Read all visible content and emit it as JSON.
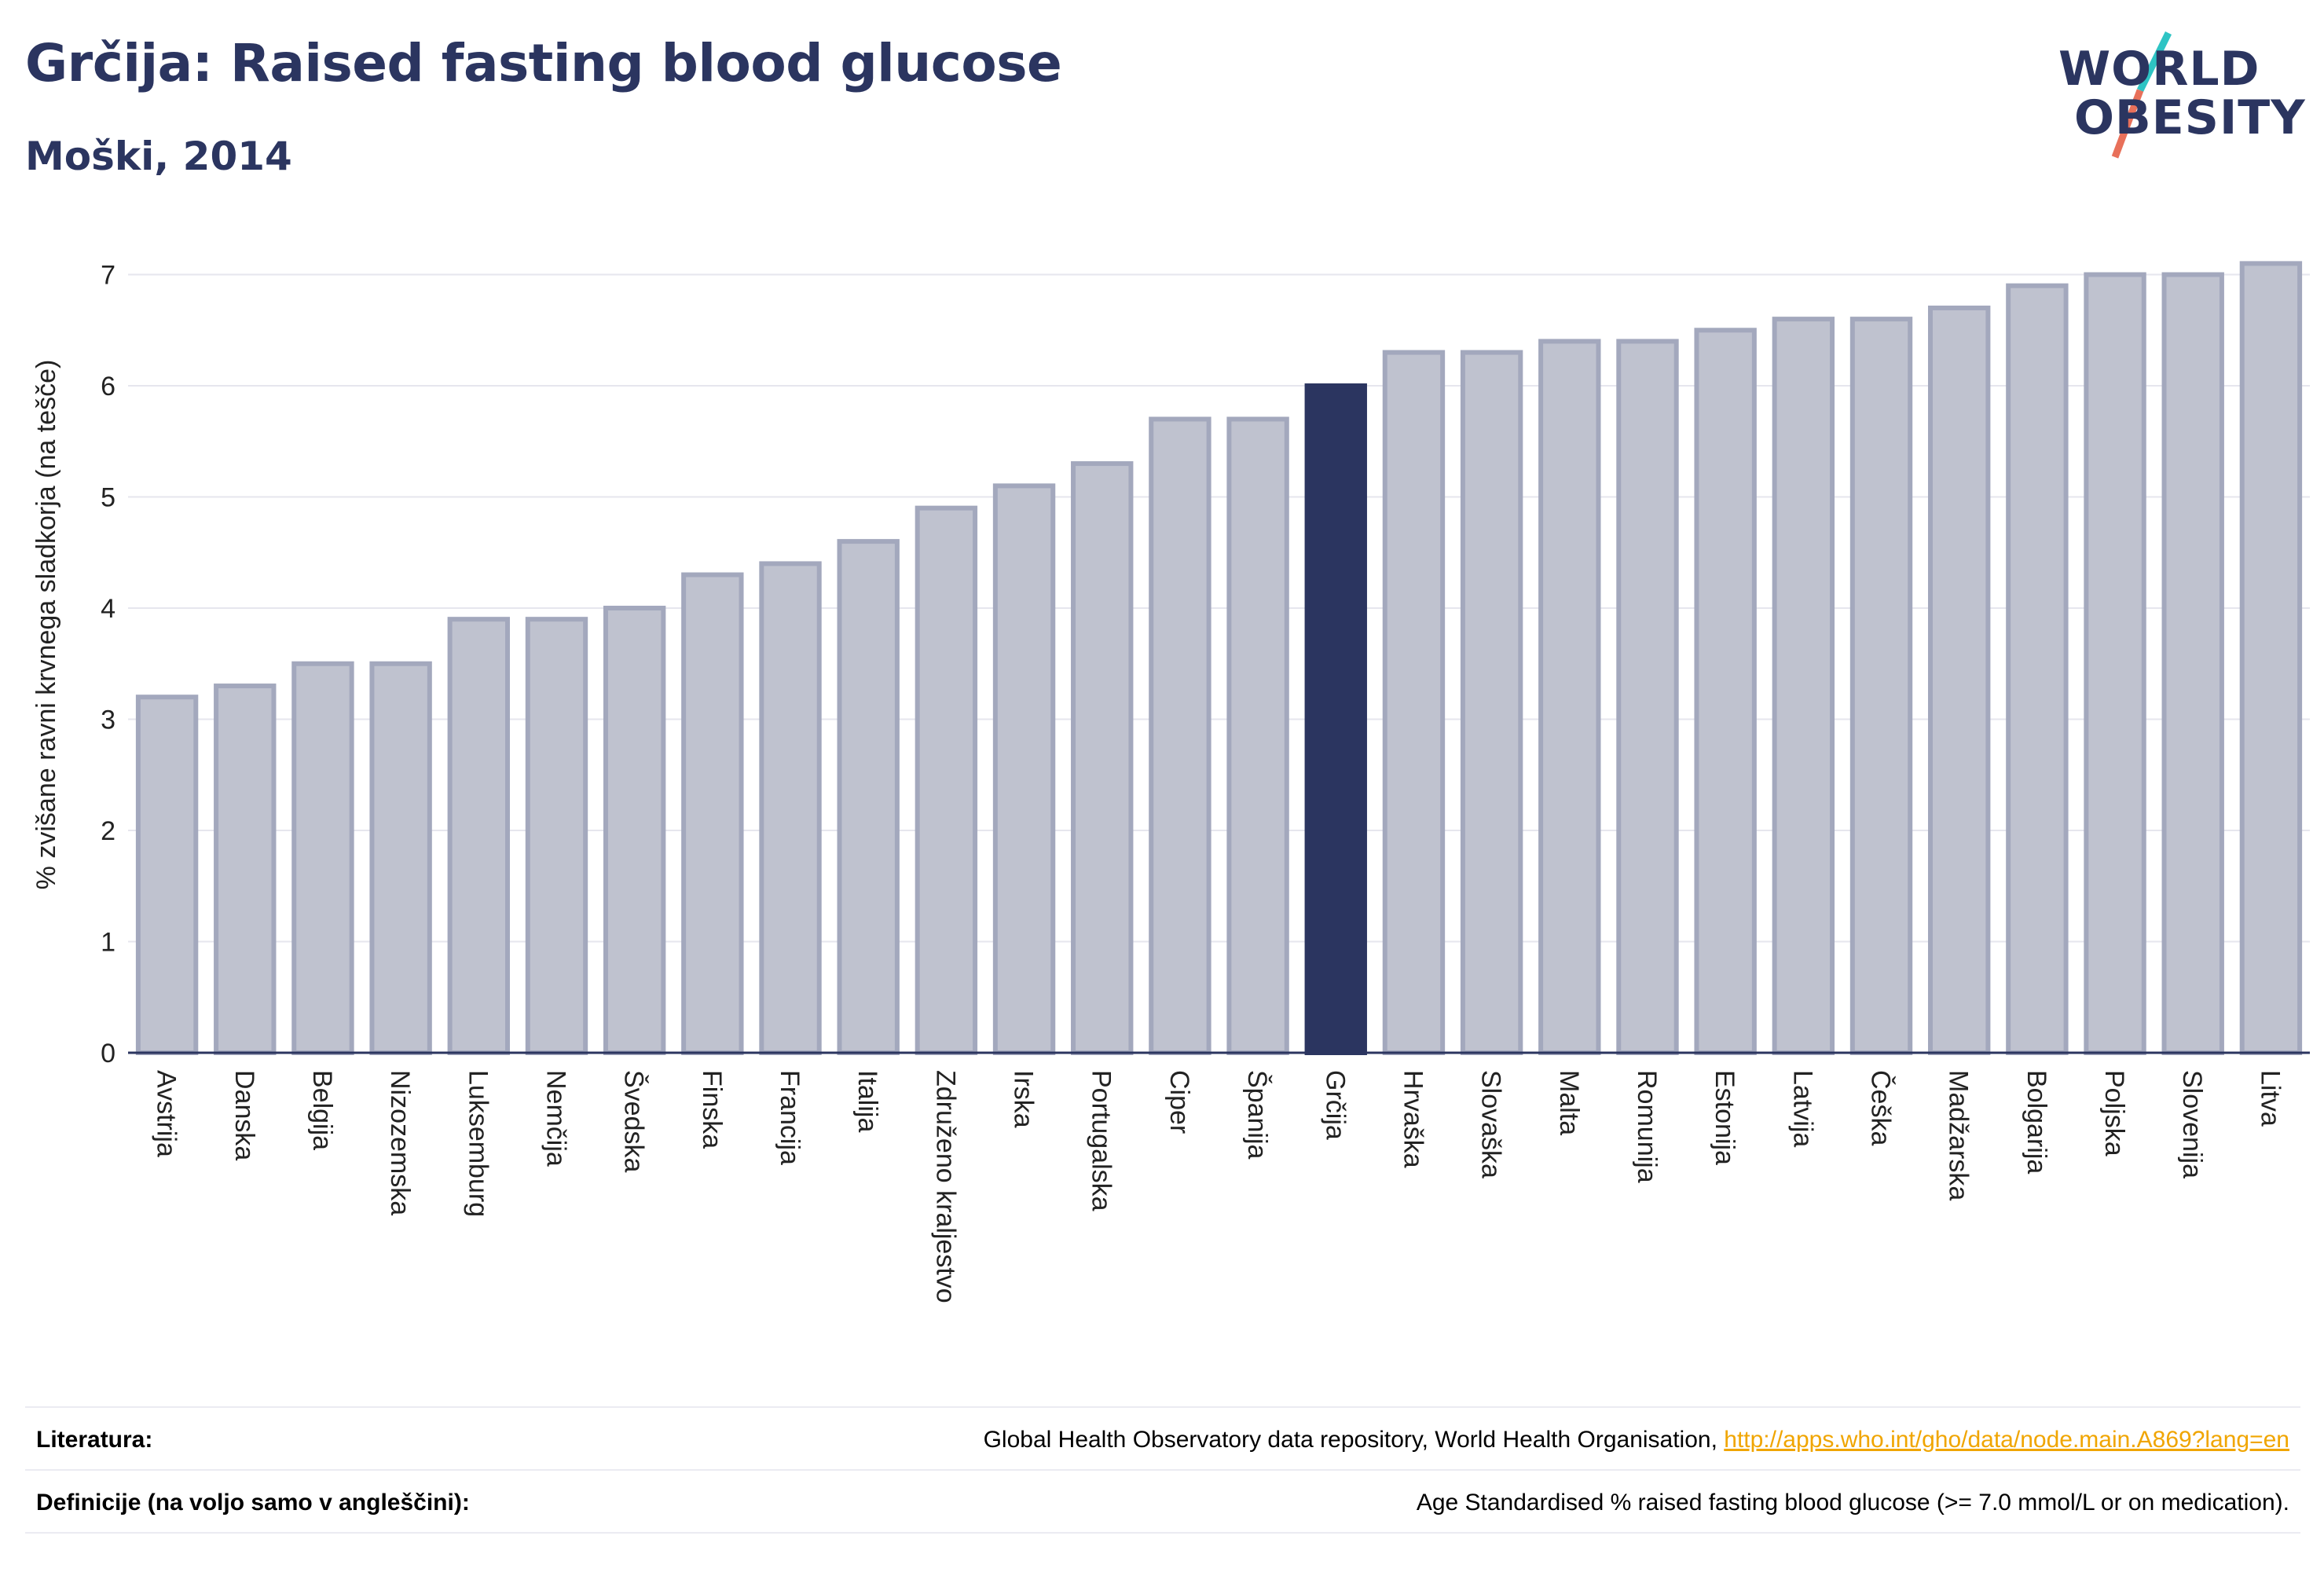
{
  "header": {
    "title": "Grčija: Raised fasting blood glucose",
    "subtitle": "Moški, 2014"
  },
  "logo": {
    "line1": "WORLD",
    "line2": "OBESITY",
    "colors": {
      "text": "#2b3560",
      "slash_top": "#2ec4c4",
      "slash_bottom": "#e8705a"
    }
  },
  "colors": {
    "bar_default_fill": "#bfc2cf",
    "bar_default_stroke": "#a3a8bd",
    "bar_highlight": "#2b3560",
    "grid": "#e6e6ee",
    "axis": "#2b3560"
  },
  "chart_data": {
    "type": "bar",
    "title": "Grčija: Raised fasting blood glucose",
    "subtitle": "Moški, 2014",
    "ylabel": "% zvišane ravni krvnega sladkorja (na tešče)",
    "xlabel": "",
    "ylim": [
      0,
      7.35
    ],
    "yticks": [
      0,
      1,
      2,
      3,
      4,
      5,
      6,
      7
    ],
    "grid": true,
    "highlight": "Grčija",
    "categories": [
      "Avstrija",
      "Danska",
      "Belgija",
      "Nizozemska",
      "Luksemburg",
      "Nemčija",
      "Švedska",
      "Finska",
      "Francija",
      "Italija",
      "Združeno kraljestvo",
      "Irska",
      "Portugalska",
      "Ciper",
      "Španija",
      "Grčija",
      "Hrvaška",
      "Slovaška",
      "Malta",
      "Romunija",
      "Estonija",
      "Latvija",
      "Češka",
      "Madžarska",
      "Bolgarija",
      "Poljska",
      "Slovenija",
      "Litva"
    ],
    "values": [
      3.2,
      3.3,
      3.5,
      3.5,
      3.9,
      3.9,
      4.0,
      4.3,
      4.4,
      4.6,
      4.9,
      5.1,
      5.3,
      5.7,
      5.7,
      6.0,
      6.3,
      6.3,
      6.4,
      6.4,
      6.5,
      6.6,
      6.6,
      6.7,
      6.9,
      7.0,
      7.0,
      7.1
    ]
  },
  "footer": {
    "sources_label": "Literatura:",
    "sources_text": "Global Health Observatory data repository, World Health Organisation, ",
    "sources_link": "http://apps.who.int/gho/data/node.main.A869?lang=en",
    "definitions_label": "Definicije (na voljo samo v angleščini):",
    "definitions_text": "Age Standardised % raised fasting blood glucose (>= 7.0 mmol/L or on medication)."
  }
}
